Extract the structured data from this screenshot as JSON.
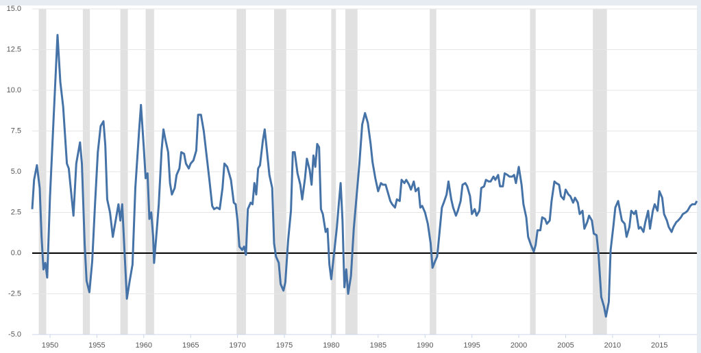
{
  "chart_data": {
    "type": "line",
    "x": [
      1948.1,
      1948.3,
      1948.6,
      1948.9,
      1949.1,
      1949.3,
      1949.5,
      1949.7,
      1950.0,
      1950.4,
      1950.8,
      1951.1,
      1951.4,
      1951.8,
      1952.0,
      1952.5,
      1952.8,
      1953.2,
      1953.4,
      1953.7,
      1953.9,
      1954.2,
      1954.5,
      1954.8,
      1955.1,
      1955.4,
      1955.7,
      1955.9,
      1956.1,
      1956.4,
      1956.7,
      1957.0,
      1957.3,
      1957.5,
      1957.7,
      1958.0,
      1958.2,
      1958.5,
      1958.8,
      1959.1,
      1959.5,
      1959.7,
      1960.0,
      1960.2,
      1960.4,
      1960.6,
      1960.8,
      1961.0,
      1961.1,
      1961.4,
      1961.6,
      1961.9,
      1962.1,
      1962.3,
      1962.6,
      1962.8,
      1963.0,
      1963.3,
      1963.5,
      1963.8,
      1964.0,
      1964.3,
      1964.5,
      1964.8,
      1965.0,
      1965.3,
      1965.6,
      1965.8,
      1966.1,
      1966.4,
      1966.7,
      1967.0,
      1967.3,
      1967.5,
      1967.8,
      1968.1,
      1968.4,
      1968.6,
      1968.9,
      1969.1,
      1969.3,
      1969.6,
      1969.8,
      1970.0,
      1970.2,
      1970.5,
      1970.7,
      1970.9,
      1971.1,
      1971.4,
      1971.6,
      1971.8,
      1972.0,
      1972.2,
      1972.4,
      1972.7,
      1972.9,
      1973.1,
      1973.4,
      1973.7,
      1973.9,
      1974.1,
      1974.4,
      1974.6,
      1974.9,
      1975.1,
      1975.4,
      1975.7,
      1975.9,
      1976.1,
      1976.4,
      1976.7,
      1976.9,
      1977.2,
      1977.4,
      1977.7,
      1977.9,
      1978.1,
      1978.3,
      1978.5,
      1978.7,
      1978.9,
      1979.1,
      1979.4,
      1979.6,
      1979.8,
      1980.0,
      1980.3,
      1980.6,
      1980.8,
      1981.0,
      1981.2,
      1981.4,
      1981.6,
      1981.8,
      1982.1,
      1982.4,
      1982.7,
      1983.0,
      1983.3,
      1983.6,
      1983.9,
      1984.2,
      1984.4,
      1984.7,
      1985.0,
      1985.3,
      1985.5,
      1985.8,
      1986.0,
      1986.3,
      1986.5,
      1986.8,
      1987.0,
      1987.3,
      1987.5,
      1987.8,
      1988.0,
      1988.3,
      1988.5,
      1988.8,
      1989.0,
      1989.3,
      1989.5,
      1989.7,
      1990.0,
      1990.3,
      1990.6,
      1990.8,
      1991.0,
      1991.3,
      1991.5,
      1991.8,
      1992.0,
      1992.3,
      1992.5,
      1992.8,
      1993.0,
      1993.3,
      1993.5,
      1993.8,
      1994.0,
      1994.3,
      1994.5,
      1994.8,
      1995.0,
      1995.3,
      1995.5,
      1995.8,
      1996.0,
      1996.3,
      1996.5,
      1996.8,
      1997.0,
      1997.3,
      1997.5,
      1997.8,
      1998.0,
      1998.3,
      1998.5,
      1998.8,
      1999.0,
      1999.3,
      1999.5,
      1999.7,
      2000.0,
      2000.3,
      2000.5,
      2000.8,
      2001.0,
      2001.3,
      2001.6,
      2001.8,
      2002.0,
      2002.3,
      2002.5,
      2002.8,
      2003.0,
      2003.3,
      2003.5,
      2003.8,
      2004.0,
      2004.3,
      2004.5,
      2004.8,
      2005.0,
      2005.3,
      2005.5,
      2005.8,
      2006.0,
      2006.3,
      2006.5,
      2006.8,
      2007.0,
      2007.3,
      2007.5,
      2007.8,
      2008.0,
      2008.3,
      2008.5,
      2008.8,
      2009.1,
      2009.3,
      2009.6,
      2009.8,
      2010.1,
      2010.3,
      2010.6,
      2010.8,
      2011.0,
      2011.3,
      2011.5,
      2011.8,
      2012.0,
      2012.3,
      2012.5,
      2012.8,
      2013.0,
      2013.3,
      2013.5,
      2013.8,
      2014.0,
      2014.3,
      2014.5,
      2014.8,
      2015.0,
      2015.3,
      2015.5,
      2015.8,
      2016.0,
      2016.3,
      2016.5,
      2016.8,
      2017.0,
      2017.3,
      2017.5,
      2017.8,
      2018.0,
      2018.3,
      2018.5,
      2018.8,
      2019.0
    ],
    "values": [
      2.7,
      4.5,
      5.4,
      4,
      1,
      -1,
      -0.6,
      -1.5,
      3.5,
      8.5,
      13.4,
      10.5,
      9,
      5.5,
      5.2,
      2.3,
      5.5,
      6.8,
      5.5,
      0.5,
      -1.7,
      -2.4,
      -0.5,
      3,
      6.2,
      7.8,
      8.1,
      6.6,
      3.3,
      2.5,
      1,
      2,
      3,
      2,
      3,
      -0.5,
      -2.8,
      -1.7,
      -0.7,
      4,
      7.5,
      9.1,
      6.5,
      4.6,
      4.9,
      2.1,
      2.5,
      1,
      -0.6,
      1.5,
      3,
      6.3,
      7.6,
      7,
      6.2,
      4.3,
      3.6,
      4,
      4.8,
      5.2,
      6.2,
      6.1,
      5.5,
      5.2,
      5.5,
      5.7,
      6.3,
      8.5,
      8.5,
      7.5,
      6,
      4.5,
      2.9,
      2.7,
      2.8,
      2.7,
      4,
      5.5,
      5.3,
      4.9,
      4.5,
      3.1,
      3,
      2,
      0.4,
      0.2,
      0.4,
      -0.1,
      2.7,
      3.1,
      3,
      4.3,
      3.6,
      5.2,
      5.4,
      6.9,
      7.6,
      6.5,
      4.8,
      4,
      0.6,
      -0.2,
      -0.6,
      -1.9,
      -2.3,
      -1.8,
      0.8,
      2.6,
      6.2,
      6.2,
      4.9,
      4.2,
      3.3,
      4.6,
      5.8,
      5.1,
      4.2,
      6,
      5.3,
      6.7,
      6.5,
      2.7,
      2.4,
      1.3,
      1.5,
      -0.7,
      -1.6,
      0,
      1.6,
      3,
      4.3,
      2,
      -2.1,
      -1,
      -2.5,
      -1.4,
      1.5,
      3.5,
      5.5,
      7.9,
      8.6,
      8,
      6.7,
      5.6,
      4.6,
      3.8,
      4.3,
      4.2,
      4.2,
      3.8,
      3.2,
      3,
      2.8,
      3.3,
      3.2,
      4.5,
      4.3,
      4.5,
      4.2,
      3.9,
      4.4,
      3.8,
      4,
      2.8,
      2.9,
      2.5,
      1.8,
      0.6,
      -0.9,
      -0.6,
      -0.2,
      1,
      2.8,
      3.1,
      3.6,
      4.4,
      3.3,
      2.8,
      2.3,
      2.6,
      3.2,
      4.2,
      4.3,
      4.1,
      3.5,
      2.4,
      2.7,
      2.3,
      2.6,
      4,
      4.1,
      4.5,
      4.4,
      4.4,
      4.7,
      4.5,
      4.8,
      4.1,
      4.1,
      4.9,
      4.8,
      4.7,
      4.7,
      4.8,
      4.3,
      5.3,
      4.2,
      3,
      2.2,
      1,
      0.5,
      0.1,
      0.5,
      1.4,
      1.4,
      2.2,
      2.1,
      1.8,
      2,
      3.2,
      4.4,
      4.3,
      4.2,
      3.5,
      3.3,
      3.9,
      3.6,
      3.5,
      3.1,
      3.4,
      3.1,
      2.4,
      2.6,
      1.5,
      1.9,
      2.3,
      2,
      1.2,
      1.1,
      0,
      -2.7,
      -3.3,
      -3.9,
      -3,
      0.2,
      1.7,
      2.8,
      3.2,
      2.6,
      2,
      1.8,
      1,
      1.6,
      2.6,
      2.4,
      2.6,
      1.5,
      1.6,
      1.3,
      1.9,
      2.6,
      1.5,
      2.6,
      3,
      2.6,
      3.8,
      3.4,
      2.4,
      2,
      1.6,
      1.3,
      1.6,
      1.9,
      2,
      2.2,
      2.4,
      2.5,
      2.6,
      2.9,
      3,
      3,
      3.2
    ],
    "color": "#4572a7",
    "recessions": [
      [
        1948.8,
        1949.6
      ],
      [
        1953.5,
        1954.25
      ],
      [
        1957.5,
        1958.3
      ],
      [
        1960.2,
        1961.1
      ],
      [
        1969.9,
        1970.9
      ],
      [
        1973.9,
        1975.2
      ],
      [
        1980.0,
        1980.5
      ],
      [
        1981.5,
        1982.8
      ],
      [
        1990.5,
        1991.2
      ],
      [
        2001.2,
        2001.8
      ],
      [
        2007.9,
        2009.4
      ]
    ],
    "xlim": [
      1948.1,
      2019.0
    ],
    "xticks": [
      1950,
      1955,
      1960,
      1965,
      1970,
      1975,
      1980,
      1985,
      1990,
      1995,
      2000,
      2005,
      2010,
      2015
    ],
    "ylim": [
      -5,
      15
    ],
    "yticks": [
      {
        "value": -5,
        "label": "-5.0"
      },
      {
        "value": -2.5,
        "label": "-2.5"
      },
      {
        "value": 0,
        "label": "0.0"
      },
      {
        "value": 2.5,
        "label": "2.5"
      },
      {
        "value": 5,
        "label": "5.0"
      },
      {
        "value": 7.5,
        "label": "7.5"
      },
      {
        "value": 10,
        "label": "10.0"
      },
      {
        "value": 12.5,
        "label": "12.5"
      },
      {
        "value": 15,
        "label": "15.0"
      }
    ],
    "grid": true
  }
}
